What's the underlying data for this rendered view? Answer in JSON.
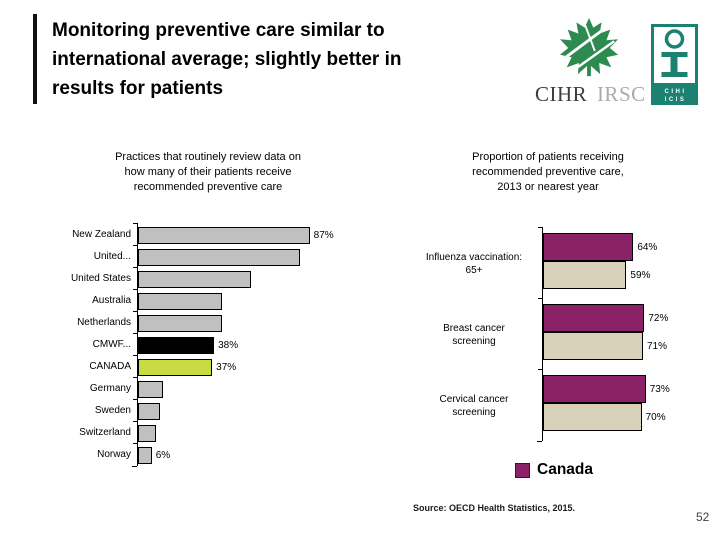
{
  "slide": {
    "title_lines": [
      "Monitoring preventive care similar to",
      "international average; slightly better in",
      "results for patients"
    ],
    "source_note": "Source: OECD Health Statistics, 2015.",
    "page_number": "52"
  },
  "logos": {
    "cihr": {
      "primary": "CIHR",
      "secondary": "IRSC"
    },
    "cihi": {
      "line1": "CIHI",
      "line2": "ICIS"
    }
  },
  "colors": {
    "bar_gray": "#C0C0C0",
    "bar_black": "#000000",
    "bar_canada_green": "#C7DB45",
    "bar_purple": "#8B2166",
    "bar_beige": "#D8D2BB",
    "logo_teal": "#1B8170",
    "leaf_green": "#2E8B50"
  },
  "chart_data": [
    {
      "type": "bar",
      "orientation": "horizontal",
      "title": "Practices that routinely review data on how many of their patients receive recommended preventive care",
      "title_lines": [
        "Practices that routinely review data on",
        "how many of their patients receive",
        "recommended preventive care"
      ],
      "categories": [
        "New Zealand",
        "United...",
        "United States",
        "Australia",
        "Netherlands",
        "CMWF...",
        "CANADA",
        "Germany",
        "Sweden",
        "Switzerland",
        "Norway"
      ],
      "values": [
        87,
        82,
        57,
        42,
        42,
        38,
        37,
        12,
        10,
        8,
        6
      ],
      "value_labels": [
        "87%",
        null,
        null,
        null,
        null,
        "38%",
        "37%",
        null,
        null,
        null,
        "6%"
      ],
      "bar_colors": [
        null,
        null,
        null,
        null,
        null,
        "#000000",
        "#C7DB45",
        null,
        null,
        null,
        null
      ],
      "unit": "%",
      "xlim": [
        0,
        100
      ],
      "grid": false
    },
    {
      "type": "bar",
      "orientation": "horizontal",
      "grouped": true,
      "title": "Proportion of patients receiving recommended preventive care, 2013 or nearest year",
      "title_lines": [
        "Proportion of patients receiving",
        "recommended preventive care,",
        "2013 or nearest year"
      ],
      "categories": [
        "Influenza vaccination: 65+",
        "Breast cancer screening",
        "Cervical cancer screening"
      ],
      "categories_lines": [
        [
          "Influenza vaccination:",
          "65+"
        ],
        [
          "Breast cancer",
          "screening"
        ],
        [
          "Cervical cancer",
          "screening"
        ]
      ],
      "series": [
        {
          "name": "Canada",
          "color": "#8B2166",
          "values": [
            64,
            72,
            73
          ],
          "value_labels": [
            "64%",
            "72%",
            "73%"
          ]
        },
        {
          "name": "",
          "color": "#D8D2BB",
          "values": [
            59,
            71,
            70
          ],
          "value_labels": [
            "59%",
            "71%",
            "70%"
          ]
        }
      ],
      "legend": {
        "entries": [
          "Canada"
        ],
        "position": "bottom-right"
      },
      "unit": "%",
      "xlim": [
        0,
        100
      ],
      "grid": false
    }
  ]
}
